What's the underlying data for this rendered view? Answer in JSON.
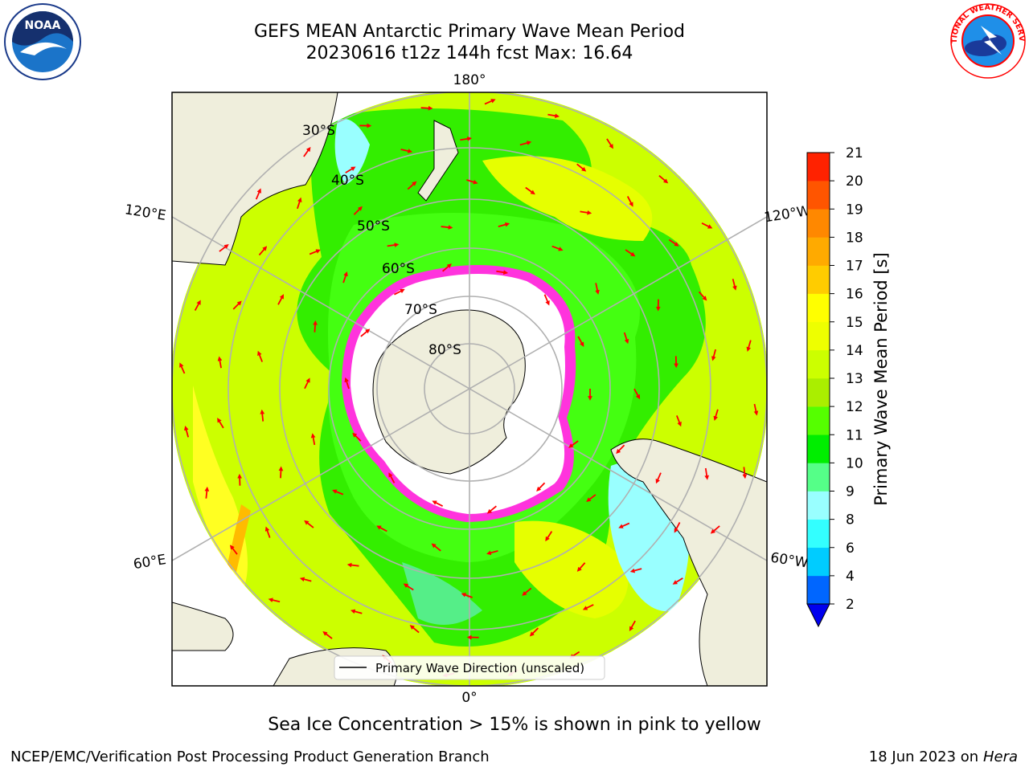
{
  "header": {
    "title_line1": "GEFS MEAN Antarctic Primary Wave Mean Period",
    "title_line2": "20230616 t12z 144h fcst   Max: 16.64"
  },
  "logos": {
    "noaa": {
      "text": "NOAA",
      "icon": "noaa-logo-icon"
    },
    "nws": {
      "text": "NATIONAL WEATHER SERVICE",
      "icon": "nws-logo-icon"
    }
  },
  "map": {
    "projection": "south-polar-stereographic",
    "meridian_labels": {
      "top": "180°",
      "bottom": "0°",
      "upper_left": "120°E",
      "upper_right": "120°W",
      "lower_left": "60°E",
      "lower_right": "60°W"
    },
    "parallel_labels": [
      "30°S",
      "40°S",
      "50°S",
      "60°S",
      "70°S",
      "80°S"
    ],
    "legend_label": "Primary Wave Direction (unscaled)",
    "colors": {
      "land": "#efeedc",
      "ice_free_shelf": "#ffffff",
      "sea_ice_edge": "#ff33dd",
      "arrow": "#ff0000"
    }
  },
  "colorbar": {
    "label": "Primary Wave Mean Period [s]",
    "ticks": [
      "2",
      "4",
      "6",
      "8",
      "9",
      "10",
      "11",
      "12",
      "13",
      "14",
      "15",
      "16",
      "17",
      "18",
      "19",
      "20",
      "21"
    ],
    "colors": [
      "#0066ff",
      "#00ccff",
      "#33ffff",
      "#99ffff",
      "#55ff88",
      "#00ee00",
      "#55ff00",
      "#aaee00",
      "#ccff00",
      "#eeff00",
      "#ffff00",
      "#ffcc00",
      "#ffaa00",
      "#ff8800",
      "#ff5500",
      "#ff2200"
    ],
    "extend_color": "#0000ee"
  },
  "caption": "Sea Ice Concentration > 15% is shown in pink to yellow",
  "footer": {
    "left": "NCEP/EMC/Verification Post Processing Product Generation Branch",
    "date": "18 Jun 2023 on",
    "host": "Hera"
  }
}
